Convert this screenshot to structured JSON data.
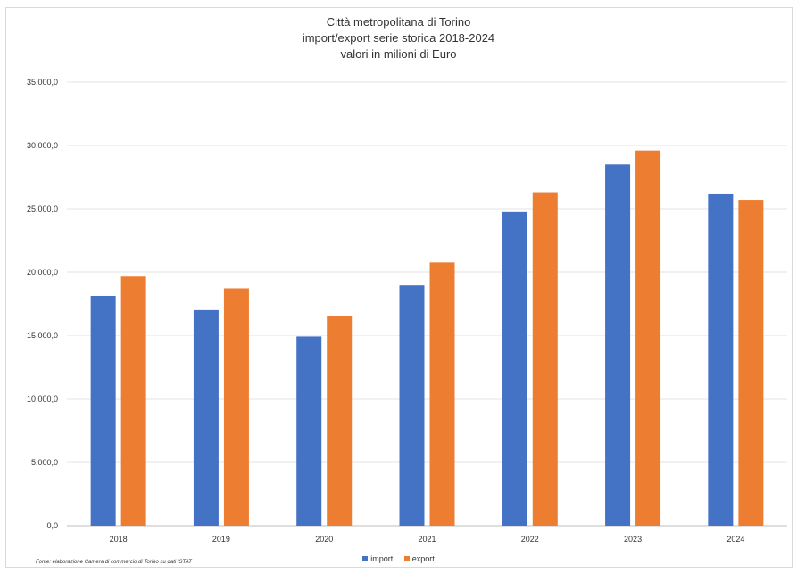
{
  "chart_data": {
    "type": "bar",
    "title_lines": [
      "Città metropolitana di Torino",
      "import/export serie storica 2018-2024",
      "valori in milioni di Euro"
    ],
    "categories": [
      "2018",
      "2019",
      "2020",
      "2021",
      "2022",
      "2023",
      "2024"
    ],
    "series": [
      {
        "name": "import",
        "color": "#4472C4",
        "values": [
          18100,
          17050,
          14900,
          19000,
          24800,
          28500,
          26200
        ]
      },
      {
        "name": "export",
        "color": "#ED7D31",
        "values": [
          19700,
          18700,
          16550,
          20750,
          26300,
          29600,
          25700
        ]
      }
    ],
    "y_ticks": [
      "0,0",
      "5.000,0",
      "10.000,0",
      "15.000,0",
      "20.000,0",
      "25.000,0",
      "30.000,0",
      "35.000,0"
    ],
    "ylim": [
      0,
      35000
    ],
    "grid": true,
    "legend_position": "bottom",
    "source_note": "Fonte: elaborazione Camera di commercio di Torino su dati ISTAT"
  }
}
